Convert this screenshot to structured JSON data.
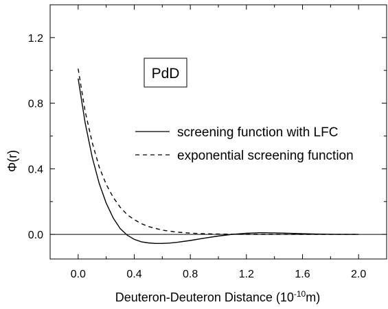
{
  "chart_data": {
    "type": "line",
    "xlabel": "Deuteron-Deuteron Distance (10",
    "xlabel_exponent": "-10",
    "xlabel_unit": "m)",
    "ylabel": "Φ(r)",
    "xlim": [
      -0.2,
      2.2
    ],
    "ylim": [
      -0.15,
      1.4
    ],
    "x_ticks": [
      0.0,
      0.4,
      0.8,
      1.2,
      1.6,
      2.0
    ],
    "x_tick_labels": [
      "0.0",
      "0.4",
      "0.8",
      "1.2",
      "1.6",
      "2.0"
    ],
    "y_ticks": [
      0.0,
      0.4,
      0.8,
      1.2
    ],
    "y_tick_labels": [
      "0.0",
      "0.4",
      "0.8",
      "1.2"
    ],
    "grid": false,
    "zero_line": true,
    "legend_position": "center-right",
    "annotation": "PdD",
    "series": [
      {
        "name": "screening function with LFC",
        "style": "solid",
        "color": "#000000",
        "x": [
          0.0,
          0.05,
          0.1,
          0.15,
          0.2,
          0.25,
          0.3,
          0.35,
          0.4,
          0.45,
          0.5,
          0.55,
          0.6,
          0.65,
          0.7,
          0.8,
          0.9,
          1.0,
          1.1,
          1.2,
          1.3,
          1.4,
          1.5,
          1.6,
          1.7,
          1.8,
          1.9,
          2.0
        ],
        "y": [
          0.95,
          0.68,
          0.47,
          0.31,
          0.19,
          0.1,
          0.035,
          -0.005,
          -0.03,
          -0.045,
          -0.052,
          -0.055,
          -0.055,
          -0.053,
          -0.049,
          -0.037,
          -0.023,
          -0.01,
          0.0,
          0.007,
          0.01,
          0.009,
          0.007,
          0.004,
          0.002,
          0.001,
          0.0,
          0.0
        ]
      },
      {
        "name": "exponential screening function",
        "style": "dashed",
        "color": "#000000",
        "x": [
          0.0,
          0.05,
          0.1,
          0.15,
          0.2,
          0.25,
          0.3,
          0.35,
          0.4,
          0.45,
          0.5,
          0.6,
          0.7,
          0.8,
          0.9,
          1.0,
          1.2,
          1.4,
          1.6,
          1.8,
          2.0
        ],
        "y": [
          1.01,
          0.75,
          0.56,
          0.41,
          0.305,
          0.225,
          0.165,
          0.12,
          0.09,
          0.066,
          0.048,
          0.026,
          0.014,
          0.0075,
          0.004,
          0.002,
          0.0006,
          0.0002,
          0.0,
          0.0,
          0.0
        ]
      }
    ]
  }
}
